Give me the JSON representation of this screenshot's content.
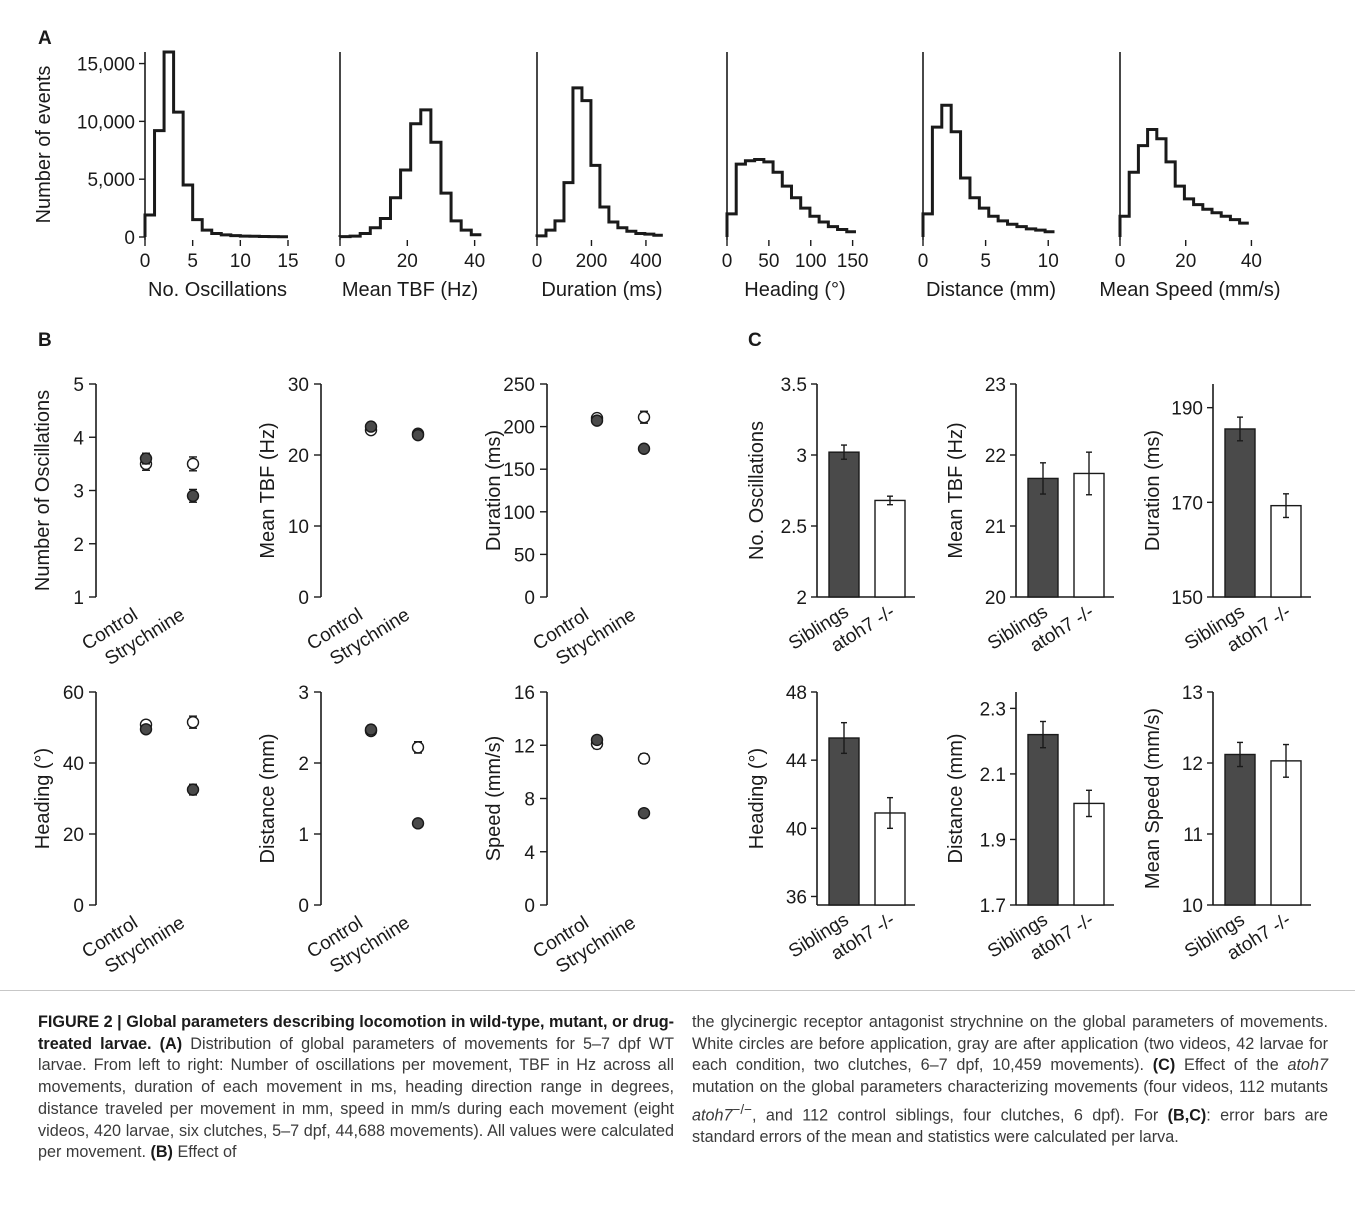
{
  "panel_labels": {
    "A": "A",
    "B": "B",
    "C": "C"
  },
  "chart_data": [
    {
      "type": "line",
      "panel": "A",
      "xlabel": "No. Oscillations",
      "ylabel": "Number of events",
      "xticks": [
        "0",
        "5",
        "10",
        "15"
      ],
      "yticks": [
        "0",
        "5,000",
        "10,000",
        "15,000"
      ],
      "xlim": [
        0,
        15
      ],
      "ylim": [
        0,
        16000
      ],
      "x": [
        0,
        1,
        2,
        3,
        4,
        5,
        6,
        7,
        8,
        9,
        10,
        11,
        12,
        13,
        14
      ],
      "y": [
        1900,
        9200,
        16000,
        10800,
        4500,
        1500,
        600,
        300,
        180,
        120,
        80,
        60,
        40,
        30,
        20
      ]
    },
    {
      "type": "line",
      "panel": "A",
      "xlabel": "Mean TBF (Hz)",
      "ylabel": "",
      "xticks": [
        "0",
        "20",
        "40"
      ],
      "yticks": [],
      "xlim": [
        0,
        41
      ],
      "ylim": [
        0,
        16000
      ],
      "x": [
        0,
        3,
        6,
        9,
        12,
        15,
        18,
        21,
        24,
        27,
        30,
        33,
        36,
        39
      ],
      "y": [
        30,
        80,
        300,
        800,
        1600,
        3400,
        5800,
        9800,
        11000,
        8200,
        3800,
        1400,
        600,
        200
      ]
    },
    {
      "type": "line",
      "panel": "A",
      "xlabel": "Duration (ms)",
      "ylabel": "",
      "xticks": [
        "0",
        "200",
        "400"
      ],
      "yticks": [],
      "xlim": [
        0,
        470
      ],
      "ylim": [
        0,
        16000
      ],
      "x": [
        0,
        33,
        66,
        99,
        132,
        165,
        198,
        231,
        264,
        297,
        330,
        363,
        396,
        429
      ],
      "y": [
        100,
        600,
        1400,
        4700,
        12900,
        11800,
        6200,
        2600,
        1300,
        800,
        500,
        300,
        250,
        150
      ]
    },
    {
      "type": "line",
      "panel": "A",
      "xlabel": "Heading (°)",
      "ylabel": "",
      "xticks": [
        "0",
        "50",
        "100",
        "150"
      ],
      "yticks": [],
      "xlim": [
        0,
        160
      ],
      "ylim": [
        0,
        16000
      ],
      "x": [
        0,
        11,
        22,
        33,
        44,
        55,
        66,
        77,
        88,
        99,
        110,
        121,
        132,
        143
      ],
      "y": [
        2000,
        6300,
        6600,
        6700,
        6500,
        5600,
        4400,
        3400,
        2500,
        1800,
        1300,
        900,
        650,
        450
      ]
    },
    {
      "type": "line",
      "panel": "A",
      "xlabel": "Distance (mm)",
      "ylabel": "",
      "xticks": [
        "0",
        "5",
        "10"
      ],
      "yticks": [],
      "xlim": [
        0,
        10.7
      ],
      "ylim": [
        0,
        16000
      ],
      "x": [
        0,
        0.75,
        1.5,
        2.25,
        3.0,
        3.75,
        4.5,
        5.25,
        6.0,
        6.75,
        7.5,
        8.25,
        9.0,
        9.75
      ],
      "y": [
        2000,
        9500,
        11400,
        9100,
        5100,
        3400,
        2500,
        1800,
        1400,
        1100,
        900,
        700,
        600,
        450
      ]
    },
    {
      "type": "line",
      "panel": "A",
      "xlabel": "Mean Speed (mm/s)",
      "ylabel": "",
      "xticks": [
        "0",
        "20",
        "40"
      ],
      "yticks": [],
      "xlim": [
        0,
        42
      ],
      "ylim": [
        0,
        16000
      ],
      "x": [
        0,
        2.8,
        5.6,
        8.4,
        11.2,
        14.0,
        16.8,
        19.6,
        22.4,
        25.2,
        28.0,
        30.8,
        33.6,
        36.4
      ],
      "y": [
        1800,
        5600,
        7900,
        9300,
        8500,
        6500,
        4400,
        3300,
        2800,
        2400,
        2100,
        1800,
        1500,
        1200
      ]
    },
    {
      "type": "scatter",
      "panel": "B",
      "ylabel": "Number of Oscillations",
      "categories": [
        "Control",
        "Strychnine"
      ],
      "yticks": [
        "1",
        "2",
        "3",
        "4",
        "5"
      ],
      "ylim": [
        1,
        5
      ],
      "series": [
        {
          "values": [
            3.5,
            3.5
          ],
          "errors": [
            0.12,
            0.13
          ]
        },
        {
          "values": [
            3.6,
            2.9
          ],
          "errors": [
            0.1,
            0.12
          ]
        }
      ]
    },
    {
      "type": "scatter",
      "panel": "B",
      "ylabel": "Mean TBF (Hz)",
      "categories": [
        "Control",
        "Strychnine"
      ],
      "yticks": [
        "0",
        "10",
        "20",
        "30"
      ],
      "ylim": [
        0,
        30
      ],
      "series": [
        {
          "values": [
            23.5,
            23.0
          ],
          "errors": [
            0.3,
            0.3
          ]
        },
        {
          "values": [
            24.0,
            22.8
          ],
          "errors": [
            0.3,
            0.3
          ]
        }
      ]
    },
    {
      "type": "scatter",
      "panel": "B",
      "ylabel": "Duration (ms)",
      "categories": [
        "Control",
        "Strychnine"
      ],
      "yticks": [
        "0",
        "50",
        "100",
        "150",
        "200",
        "250"
      ],
      "ylim": [
        0,
        250
      ],
      "series": [
        {
          "values": [
            210,
            211
          ],
          "errors": [
            4,
            7
          ]
        },
        {
          "values": [
            207,
            174
          ],
          "errors": [
            4,
            4
          ]
        }
      ]
    },
    {
      "type": "scatter",
      "panel": "B",
      "ylabel": "Heading (°)",
      "categories": [
        "Control",
        "Strychnine"
      ],
      "yticks": [
        "0",
        "20",
        "40",
        "60"
      ],
      "ylim": [
        0,
        60
      ],
      "series": [
        {
          "values": [
            50.8,
            51.5
          ],
          "errors": [
            1.0,
            1.7
          ]
        },
        {
          "values": [
            49.5,
            32.5
          ],
          "errors": [
            1.0,
            1.5
          ]
        }
      ]
    },
    {
      "type": "scatter",
      "panel": "B",
      "ylabel": "Distance (mm)",
      "categories": [
        "Control",
        "Strychnine"
      ],
      "yticks": [
        "0",
        "1",
        "2",
        "3"
      ],
      "ylim": [
        0,
        3
      ],
      "series": [
        {
          "values": [
            2.45,
            2.22
          ],
          "errors": [
            0.06,
            0.08
          ]
        },
        {
          "values": [
            2.47,
            1.15
          ],
          "errors": [
            0.06,
            0.05
          ]
        }
      ]
    },
    {
      "type": "scatter",
      "panel": "B",
      "ylabel": "Speed (mm/s)",
      "categories": [
        "Control",
        "Strychnine"
      ],
      "yticks": [
        "0",
        "4",
        "8",
        "12",
        "16"
      ],
      "ylim": [
        0,
        16
      ],
      "series": [
        {
          "values": [
            12.1,
            11.0
          ],
          "errors": [
            0.35,
            0.35
          ]
        },
        {
          "values": [
            12.4,
            6.9
          ],
          "errors": [
            0.3,
            0.3
          ]
        }
      ]
    },
    {
      "type": "bar",
      "panel": "C",
      "ylabel": "No. Oscillations",
      "categories": [
        "Siblings",
        "atoh7 -/-"
      ],
      "yticks": [
        "2",
        "2.5",
        "3",
        "3.5"
      ],
      "ylim": [
        2,
        3.5
      ],
      "values": [
        3.02,
        2.68
      ],
      "errors": [
        0.05,
        0.03
      ]
    },
    {
      "type": "bar",
      "panel": "C",
      "ylabel": "Mean TBF (Hz)",
      "categories": [
        "Siblings",
        "atoh7 -/-"
      ],
      "yticks": [
        "20",
        "21",
        "22",
        "23"
      ],
      "ylim": [
        20,
        23
      ],
      "values": [
        21.67,
        21.74
      ],
      "errors": [
        0.22,
        0.3
      ]
    },
    {
      "type": "bar",
      "panel": "C",
      "ylabel": "Duration (ms)",
      "categories": [
        "Siblings",
        "atoh7 -/-"
      ],
      "yticks": [
        "150",
        "170",
        "190"
      ],
      "ylim": [
        150,
        195
      ],
      "values": [
        185.5,
        169.3
      ],
      "errors": [
        2.5,
        2.5
      ]
    },
    {
      "type": "bar",
      "panel": "C",
      "ylabel": "Heading (°)",
      "categories": [
        "Siblings",
        "atoh7 -/-"
      ],
      "yticks": [
        "36",
        "40",
        "44",
        "48"
      ],
      "ylim": [
        35.5,
        48
      ],
      "values": [
        45.3,
        40.9
      ],
      "errors": [
        0.9,
        0.9
      ]
    },
    {
      "type": "bar",
      "panel": "C",
      "ylabel": "Distance (mm)",
      "categories": [
        "Siblings",
        "atoh7 -/-"
      ],
      "yticks": [
        "1.7",
        "1.9",
        "2.1",
        "2.3"
      ],
      "ylim": [
        1.7,
        2.35
      ],
      "values": [
        2.22,
        2.01
      ],
      "errors": [
        0.04,
        0.04
      ]
    },
    {
      "type": "bar",
      "panel": "C",
      "ylabel": "Mean Speed (mm/s)",
      "categories": [
        "Siblings",
        "atoh7 -/-"
      ],
      "yticks": [
        "10",
        "11",
        "12",
        "13"
      ],
      "ylim": [
        10,
        13
      ],
      "values": [
        12.12,
        12.03
      ],
      "errors": [
        0.17,
        0.23
      ]
    }
  ],
  "caption": {
    "figure_label": "FIGURE 2 | Global parameters describing locomotion in wild-type, mutant, or drug-treated larvae.",
    "a_label": "(A)",
    "a_text": "Distribution of global parameters of movements for 5–7 dpf WT larvae. From left to right: Number of oscillations per movement, TBF in Hz across all movements, duration of each movement in ms, heading direction range in degrees, distance traveled per movement in mm, speed in mm/s during each movement (eight videos, 420 larvae, six clutches, 5–7 dpf, 44,688 movements). All values were calculated per movement.",
    "b_label": "(B)",
    "b_text_left": "Effect of",
    "b_text_right": "the glycinergic receptor antagonist strychnine on the global parameters of movements. White circles are before application, gray are after application (two videos, 42 larvae for each condition, two clutches, 6–7 dpf, 10,459 movements).",
    "c_label": "(C)",
    "c_text_1": "Effect of the",
    "c_gene": "atoh7",
    "c_text_2": "mutation on the global parameters characterizing movements (four videos, 112 mutants",
    "c_gene_2": "atoh7",
    "c_sup": "−/−",
    "c_text_3": ", and 112 control siblings, four clutches, 6 dpf). For",
    "bc_label": "(B,C)",
    "c_text_4": ": error bars are standard errors of the mean and statistics were calculated per larva."
  },
  "colors": {
    "filled": "#4a4a4a",
    "open": "#ffffff",
    "line": "#1a1a1a",
    "caption_text": "#3a3a3a"
  }
}
